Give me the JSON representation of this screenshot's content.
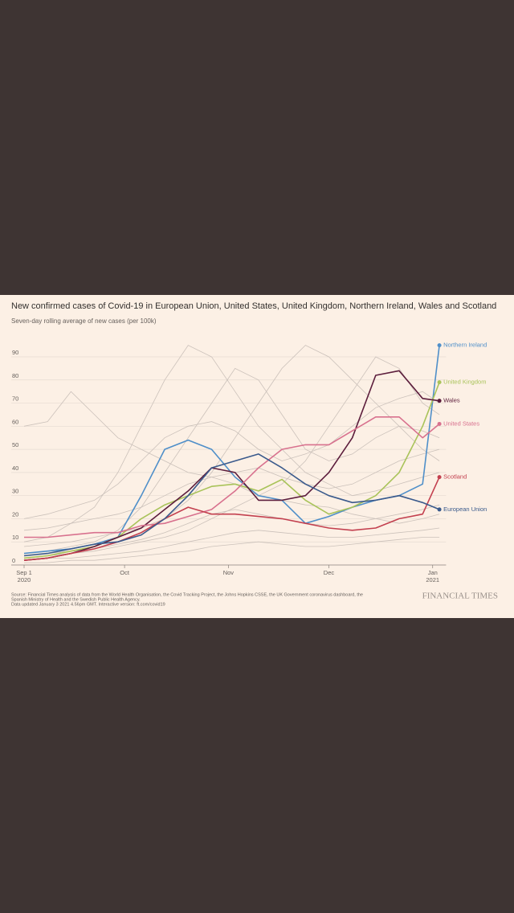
{
  "chart_data": {
    "type": "line",
    "title": "New confirmed cases of Covid-19 in European Union, United States, United Kingdom, Northern Ireland, Wales and Scotland",
    "subtitle": "Seven-day rolling average of new cases (per 100k)",
    "x": [
      0,
      7,
      14,
      21,
      28,
      35,
      42,
      49,
      56,
      63,
      70,
      77,
      84,
      91,
      98,
      105,
      112,
      119,
      124
    ],
    "xlim": [
      0,
      126
    ],
    "xticks": [
      {
        "value": 0,
        "label": "Sep 1"
      },
      {
        "value": 30,
        "label": "Oct"
      },
      {
        "value": 61,
        "label": "Nov"
      },
      {
        "value": 91,
        "label": "Dec"
      },
      {
        "value": 122,
        "label": "Jan"
      }
    ],
    "xtick_years": [
      {
        "value": 0,
        "label": "2020"
      },
      {
        "value": 122,
        "label": "2021"
      }
    ],
    "ylim": [
      0,
      98
    ],
    "yticks": [
      0,
      10,
      20,
      30,
      40,
      50,
      60,
      70,
      80,
      90
    ],
    "grid": true,
    "background_color": "#cbc1ba",
    "background_series": [
      {
        "values": [
          60,
          62,
          75,
          65,
          55,
          50,
          45,
          40,
          38,
          35,
          30,
          28,
          26,
          25,
          22,
          20,
          18,
          20,
          22
        ]
      },
      {
        "values": [
          10,
          12,
          18,
          25,
          40,
          60,
          80,
          95,
          90,
          75,
          60,
          50,
          40,
          35,
          30,
          32,
          35,
          38,
          40
        ]
      },
      {
        "values": [
          5,
          6,
          8,
          10,
          15,
          25,
          40,
          55,
          70,
          85,
          80,
          65,
          50,
          45,
          48,
          55,
          60,
          58,
          55
        ]
      },
      {
        "values": [
          8,
          9,
          10,
          12,
          14,
          16,
          20,
          28,
          40,
          55,
          70,
          85,
          95,
          90,
          80,
          70,
          60,
          50,
          45
        ]
      },
      {
        "values": [
          3,
          4,
          5,
          6,
          8,
          10,
          12,
          15,
          20,
          25,
          30,
          35,
          45,
          60,
          75,
          90,
          85,
          70,
          65
        ]
      },
      {
        "values": [
          15,
          16,
          18,
          20,
          22,
          25,
          30,
          35,
          38,
          40,
          42,
          38,
          35,
          33,
          35,
          40,
          45,
          48,
          50
        ]
      },
      {
        "values": [
          2,
          3,
          3,
          4,
          5,
          6,
          8,
          10,
          12,
          14,
          15,
          14,
          13,
          12,
          12,
          13,
          14,
          15,
          16
        ]
      },
      {
        "values": [
          20,
          22,
          25,
          28,
          35,
          45,
          55,
          60,
          62,
          58,
          50,
          45,
          48,
          52,
          60,
          68,
          72,
          75,
          70
        ]
      },
      {
        "values": [
          4,
          5,
          6,
          7,
          9,
          11,
          14,
          18,
          22,
          24,
          22,
          20,
          18,
          17,
          18,
          20,
          22,
          24,
          26
        ]
      },
      {
        "values": [
          1,
          1,
          2,
          2,
          3,
          4,
          5,
          6,
          8,
          9,
          10,
          9,
          8,
          8,
          9,
          10,
          11,
          12,
          12
        ]
      }
    ],
    "series": [
      {
        "name": "Northern Ireland",
        "color": "#4f8fc9",
        "values": [
          5,
          6,
          7,
          9,
          12,
          30,
          50,
          54,
          50,
          38,
          30,
          28,
          18,
          21,
          25,
          28,
          30,
          35,
          95
        ]
      },
      {
        "name": "United Kingdom",
        "color": "#a9c35a",
        "values": [
          3,
          4,
          6,
          8,
          12,
          20,
          26,
          30,
          34,
          35,
          32,
          37,
          28,
          22,
          25,
          30,
          40,
          60,
          79
        ]
      },
      {
        "name": "Wales",
        "color": "#5c1d3c",
        "values": [
          2,
          3,
          5,
          8,
          12,
          16,
          24,
          32,
          42,
          40,
          28,
          28,
          30,
          40,
          55,
          82,
          84,
          72,
          71
        ]
      },
      {
        "name": "United States",
        "color": "#d8718e",
        "values": [
          12,
          12,
          13,
          14,
          14,
          17,
          18,
          21,
          24,
          32,
          42,
          50,
          52,
          52,
          58,
          64,
          64,
          55,
          61
        ]
      },
      {
        "name": "Scotland",
        "color": "#c3404f",
        "values": [
          2,
          3,
          5,
          7,
          10,
          14,
          20,
          25,
          22,
          22,
          21,
          20,
          18,
          16,
          15,
          16,
          20,
          22,
          38
        ]
      },
      {
        "name": "European Union",
        "color": "#3a5a8c",
        "values": [
          4,
          5,
          7,
          9,
          10,
          13,
          20,
          30,
          42,
          45,
          48,
          42,
          35,
          30,
          27,
          28,
          30,
          27,
          24
        ]
      }
    ],
    "source": [
      "Source: Financial Times analysis of data from the World Health Organisation, the Covid Tracking Project, the Johns Hopkins CSSE, the UK Government coronavirus dashboard, the",
      "Spanish Ministry of Health and the Swedish Public Health Agency.",
      "Data updated January 3 2021 4.56pm GMT. Interactive version: ft.com/covid19"
    ],
    "brand": "FINANCIAL TIMES"
  }
}
